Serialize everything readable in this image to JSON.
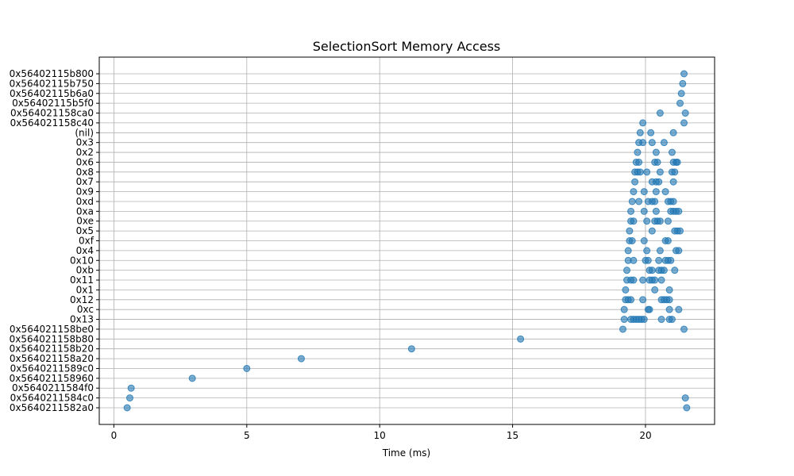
{
  "chart_data": {
    "type": "scatter",
    "title": "SelectionSort Memory Access",
    "xlabel": "Time (ms)",
    "ylabel": "",
    "xlim": [
      -0.55,
      22.6
    ],
    "x_ticks": [
      0,
      5,
      10,
      15,
      20
    ],
    "grid": true,
    "marker_color": "#1f77b4",
    "categories": [
      "0x5640211582a0",
      "0x5640211584c0",
      "0x5640211584f0",
      "0x564021158960",
      "0x5640211589c0",
      "0x564021158a20",
      "0x564021158b20",
      "0x564021158b80",
      "0x564021158be0",
      "0x13",
      "0xc",
      "0x12",
      "0x1",
      "0x11",
      "0xb",
      "0x10",
      "0x4",
      "0xf",
      "0x5",
      "0xe",
      "0xa",
      "0xd",
      "0x9",
      "0x7",
      "0x8",
      "0x6",
      "0x2",
      "0x3",
      "(nil)",
      "0x564021158c40",
      "0x564021158ca0",
      "0x56402115b5f0",
      "0x56402115b6a0",
      "0x56402115b750",
      "0x56402115b800"
    ],
    "points": [
      {
        "x": 0.5,
        "y": "0x5640211582a0"
      },
      {
        "x": 21.55,
        "y": "0x5640211582a0"
      },
      {
        "x": 0.6,
        "y": "0x5640211584c0"
      },
      {
        "x": 21.5,
        "y": "0x5640211584c0"
      },
      {
        "x": 0.65,
        "y": "0x5640211584f0"
      },
      {
        "x": 2.95,
        "y": "0x564021158960"
      },
      {
        "x": 5.0,
        "y": "0x5640211589c0"
      },
      {
        "x": 7.05,
        "y": "0x564021158a20"
      },
      {
        "x": 11.2,
        "y": "0x564021158b20"
      },
      {
        "x": 15.3,
        "y": "0x564021158b80"
      },
      {
        "x": 19.15,
        "y": "0x564021158be0"
      },
      {
        "x": 21.45,
        "y": "0x564021158be0"
      },
      {
        "x": 19.2,
        "y": "0x13"
      },
      {
        "x": 19.45,
        "y": "0x13"
      },
      {
        "x": 19.55,
        "y": "0x13"
      },
      {
        "x": 19.65,
        "y": "0x13"
      },
      {
        "x": 19.75,
        "y": "0x13"
      },
      {
        "x": 19.85,
        "y": "0x13"
      },
      {
        "x": 19.95,
        "y": "0x13"
      },
      {
        "x": 20.6,
        "y": "0x13"
      },
      {
        "x": 20.9,
        "y": "0x13"
      },
      {
        "x": 21.0,
        "y": "0x13"
      },
      {
        "x": 19.2,
        "y": "0xc"
      },
      {
        "x": 20.1,
        "y": "0xc"
      },
      {
        "x": 20.15,
        "y": "0xc"
      },
      {
        "x": 20.9,
        "y": "0xc"
      },
      {
        "x": 21.25,
        "y": "0xc"
      },
      {
        "x": 19.25,
        "y": "0x12"
      },
      {
        "x": 19.35,
        "y": "0x12"
      },
      {
        "x": 19.45,
        "y": "0x12"
      },
      {
        "x": 19.9,
        "y": "0x12"
      },
      {
        "x": 20.6,
        "y": "0x12"
      },
      {
        "x": 20.7,
        "y": "0x12"
      },
      {
        "x": 20.8,
        "y": "0x12"
      },
      {
        "x": 20.9,
        "y": "0x12"
      },
      {
        "x": 19.25,
        "y": "0x1"
      },
      {
        "x": 20.35,
        "y": "0x1"
      },
      {
        "x": 20.9,
        "y": "0x1"
      },
      {
        "x": 19.3,
        "y": "0x11"
      },
      {
        "x": 19.45,
        "y": "0x11"
      },
      {
        "x": 19.55,
        "y": "0x11"
      },
      {
        "x": 19.9,
        "y": "0x11"
      },
      {
        "x": 20.15,
        "y": "0x11"
      },
      {
        "x": 20.25,
        "y": "0x11"
      },
      {
        "x": 20.35,
        "y": "0x11"
      },
      {
        "x": 20.6,
        "y": "0x11"
      },
      {
        "x": 19.3,
        "y": "0xb"
      },
      {
        "x": 20.15,
        "y": "0xb"
      },
      {
        "x": 20.25,
        "y": "0xb"
      },
      {
        "x": 20.5,
        "y": "0xb"
      },
      {
        "x": 20.6,
        "y": "0xb"
      },
      {
        "x": 20.7,
        "y": "0xb"
      },
      {
        "x": 21.1,
        "y": "0xb"
      },
      {
        "x": 19.35,
        "y": "0x10"
      },
      {
        "x": 19.55,
        "y": "0x10"
      },
      {
        "x": 20.0,
        "y": "0x10"
      },
      {
        "x": 20.1,
        "y": "0x10"
      },
      {
        "x": 20.5,
        "y": "0x10"
      },
      {
        "x": 20.75,
        "y": "0x10"
      },
      {
        "x": 20.85,
        "y": "0x10"
      },
      {
        "x": 20.95,
        "y": "0x10"
      },
      {
        "x": 19.35,
        "y": "0x4"
      },
      {
        "x": 20.05,
        "y": "0x4"
      },
      {
        "x": 20.55,
        "y": "0x4"
      },
      {
        "x": 21.15,
        "y": "0x4"
      },
      {
        "x": 21.25,
        "y": "0x4"
      },
      {
        "x": 19.4,
        "y": "0xf"
      },
      {
        "x": 19.5,
        "y": "0xf"
      },
      {
        "x": 19.95,
        "y": "0xf"
      },
      {
        "x": 20.75,
        "y": "0xf"
      },
      {
        "x": 20.85,
        "y": "0xf"
      },
      {
        "x": 19.4,
        "y": "0x5"
      },
      {
        "x": 20.25,
        "y": "0x5"
      },
      {
        "x": 21.1,
        "y": "0x5"
      },
      {
        "x": 21.2,
        "y": "0x5"
      },
      {
        "x": 21.3,
        "y": "0x5"
      },
      {
        "x": 19.45,
        "y": "0xe"
      },
      {
        "x": 19.55,
        "y": "0xe"
      },
      {
        "x": 20.05,
        "y": "0xe"
      },
      {
        "x": 20.35,
        "y": "0xe"
      },
      {
        "x": 20.45,
        "y": "0xe"
      },
      {
        "x": 20.55,
        "y": "0xe"
      },
      {
        "x": 20.85,
        "y": "0xe"
      },
      {
        "x": 19.45,
        "y": "0xa"
      },
      {
        "x": 19.95,
        "y": "0xa"
      },
      {
        "x": 20.4,
        "y": "0xa"
      },
      {
        "x": 20.95,
        "y": "0xa"
      },
      {
        "x": 21.05,
        "y": "0xa"
      },
      {
        "x": 21.15,
        "y": "0xa"
      },
      {
        "x": 21.25,
        "y": "0xa"
      },
      {
        "x": 19.5,
        "y": "0xd"
      },
      {
        "x": 19.75,
        "y": "0xd"
      },
      {
        "x": 20.1,
        "y": "0xd"
      },
      {
        "x": 20.25,
        "y": "0xd"
      },
      {
        "x": 20.35,
        "y": "0xd"
      },
      {
        "x": 20.85,
        "y": "0xd"
      },
      {
        "x": 20.95,
        "y": "0xd"
      },
      {
        "x": 21.05,
        "y": "0xd"
      },
      {
        "x": 19.55,
        "y": "0x9"
      },
      {
        "x": 19.95,
        "y": "0x9"
      },
      {
        "x": 20.4,
        "y": "0x9"
      },
      {
        "x": 20.75,
        "y": "0x9"
      },
      {
        "x": 19.6,
        "y": "0x7"
      },
      {
        "x": 20.25,
        "y": "0x7"
      },
      {
        "x": 20.4,
        "y": "0x7"
      },
      {
        "x": 20.5,
        "y": "0x7"
      },
      {
        "x": 21.05,
        "y": "0x7"
      },
      {
        "x": 19.6,
        "y": "0x8"
      },
      {
        "x": 19.7,
        "y": "0x8"
      },
      {
        "x": 19.8,
        "y": "0x8"
      },
      {
        "x": 20.05,
        "y": "0x8"
      },
      {
        "x": 20.55,
        "y": "0x8"
      },
      {
        "x": 21.0,
        "y": "0x8"
      },
      {
        "x": 21.1,
        "y": "0x8"
      },
      {
        "x": 19.65,
        "y": "0x6"
      },
      {
        "x": 19.75,
        "y": "0x6"
      },
      {
        "x": 20.35,
        "y": "0x6"
      },
      {
        "x": 20.45,
        "y": "0x6"
      },
      {
        "x": 21.05,
        "y": "0x6"
      },
      {
        "x": 21.15,
        "y": "0x6"
      },
      {
        "x": 21.2,
        "y": "0x6"
      },
      {
        "x": 19.7,
        "y": "0x2"
      },
      {
        "x": 20.4,
        "y": "0x2"
      },
      {
        "x": 21.0,
        "y": "0x2"
      },
      {
        "x": 19.75,
        "y": "0x3"
      },
      {
        "x": 19.9,
        "y": "0x3"
      },
      {
        "x": 20.25,
        "y": "0x3"
      },
      {
        "x": 20.7,
        "y": "0x3"
      },
      {
        "x": 19.8,
        "y": "(nil)"
      },
      {
        "x": 20.2,
        "y": "(nil)"
      },
      {
        "x": 21.05,
        "y": "(nil)"
      },
      {
        "x": 19.9,
        "y": "0x564021158c40"
      },
      {
        "x": 21.45,
        "y": "0x564021158c40"
      },
      {
        "x": 20.55,
        "y": "0x564021158ca0"
      },
      {
        "x": 21.5,
        "y": "0x564021158ca0"
      },
      {
        "x": 21.3,
        "y": "0x56402115b5f0"
      },
      {
        "x": 21.35,
        "y": "0x56402115b6a0"
      },
      {
        "x": 21.4,
        "y": "0x56402115b750"
      },
      {
        "x": 21.45,
        "y": "0x56402115b800"
      }
    ]
  }
}
